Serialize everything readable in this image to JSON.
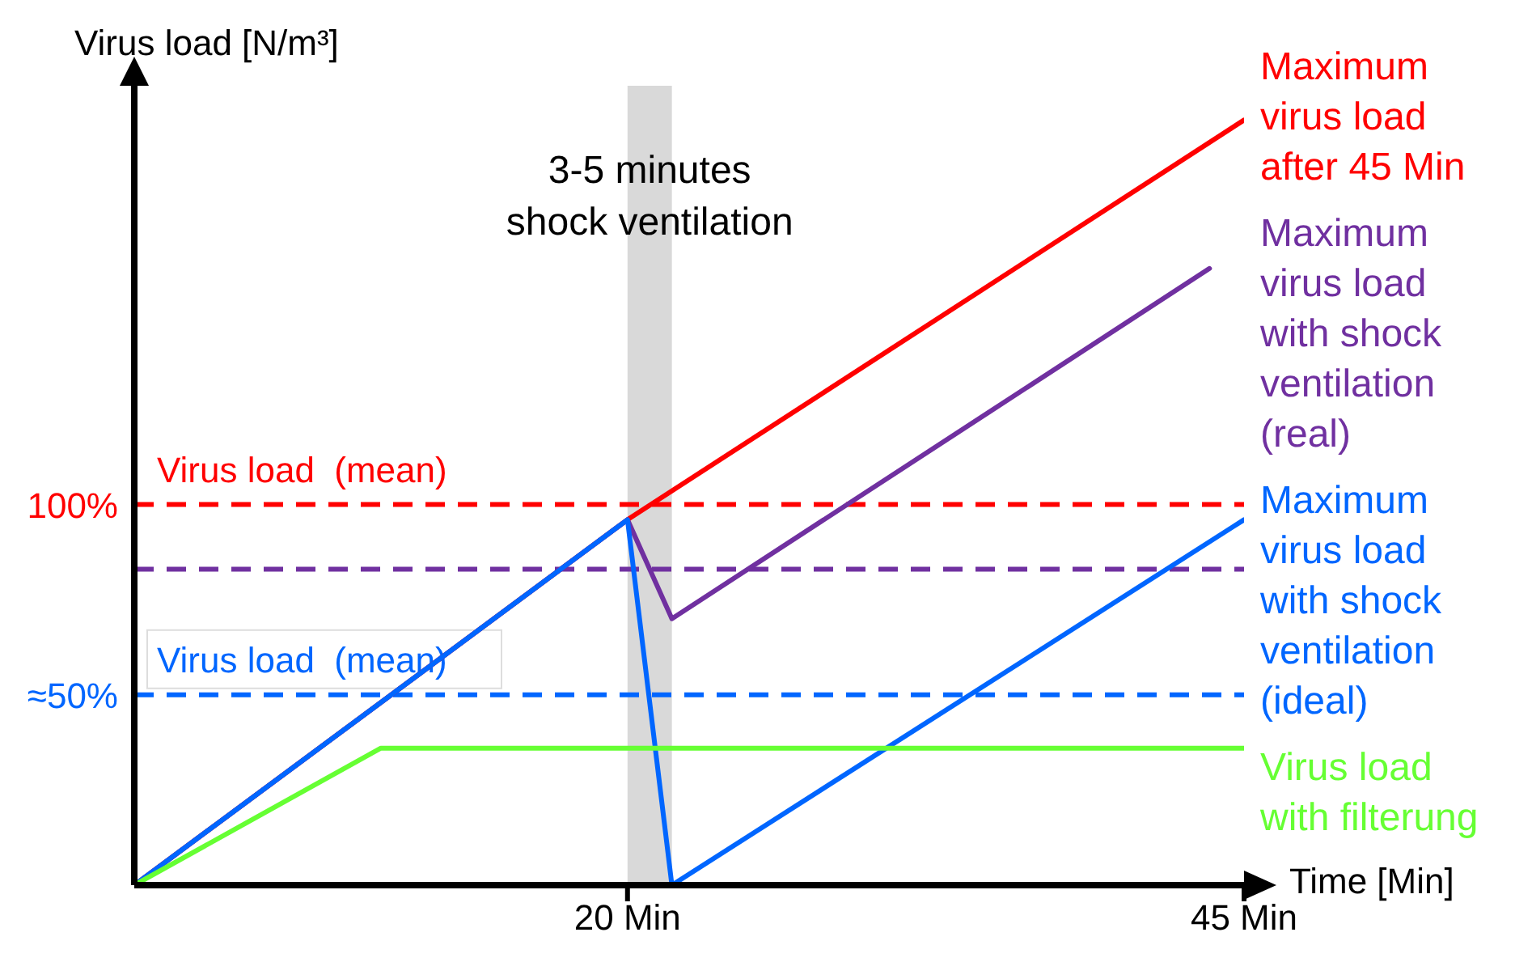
{
  "chart_data": {
    "type": "line",
    "xlabel": "Time [Min]",
    "ylabel": "Virus load [N/m³]",
    "xlim": [
      0,
      45
    ],
    "xticks": [
      {
        "value": 20,
        "label": "20 Min"
      },
      {
        "value": 45,
        "label": "45 Min"
      }
    ],
    "ylim": [
      0,
      210
    ],
    "yticks": [
      {
        "value": 50,
        "label": "≈50%"
      },
      {
        "value": 100,
        "label": "100%"
      }
    ],
    "legend": false,
    "series": [
      {
        "name": "Maximum virus load after 45 Min",
        "color": "#ff0000",
        "x": [
          0,
          20,
          45
        ],
        "values": [
          0,
          96,
          201
        ]
      },
      {
        "name": "Maximum virus load with shock ventilation (real)",
        "color": "#7030a0",
        "x": [
          0,
          20,
          21.8,
          43.6
        ],
        "values": [
          0,
          96,
          70,
          162
        ]
      },
      {
        "name": "Maximum virus load with shock ventilation (ideal)",
        "color": "#0066ff",
        "x": [
          0,
          20,
          21.8,
          45
        ],
        "values": [
          0,
          96,
          0,
          96
        ]
      },
      {
        "name": "Virus load with filterung",
        "color": "#66ff33",
        "x": [
          0,
          10,
          45
        ],
        "values": [
          0,
          36,
          36
        ]
      }
    ],
    "ref_lines": [
      {
        "axis": "y",
        "value": 100,
        "label": "Virus load  (mean)",
        "color": "#ff0000",
        "line_style": "dashed"
      },
      {
        "axis": "y",
        "value": 83,
        "color": "#7030a0",
        "line_style": "dashed"
      },
      {
        "axis": "y",
        "value": 50,
        "label": "Virus load  (mean)",
        "color": "#0066ff",
        "line_style": "dashed"
      }
    ],
    "bands": [
      {
        "axis": "x",
        "from": 20,
        "to": 21.8,
        "label": "3-5 minutes shock ventilation",
        "color": "#d9d9d9"
      }
    ]
  }
}
